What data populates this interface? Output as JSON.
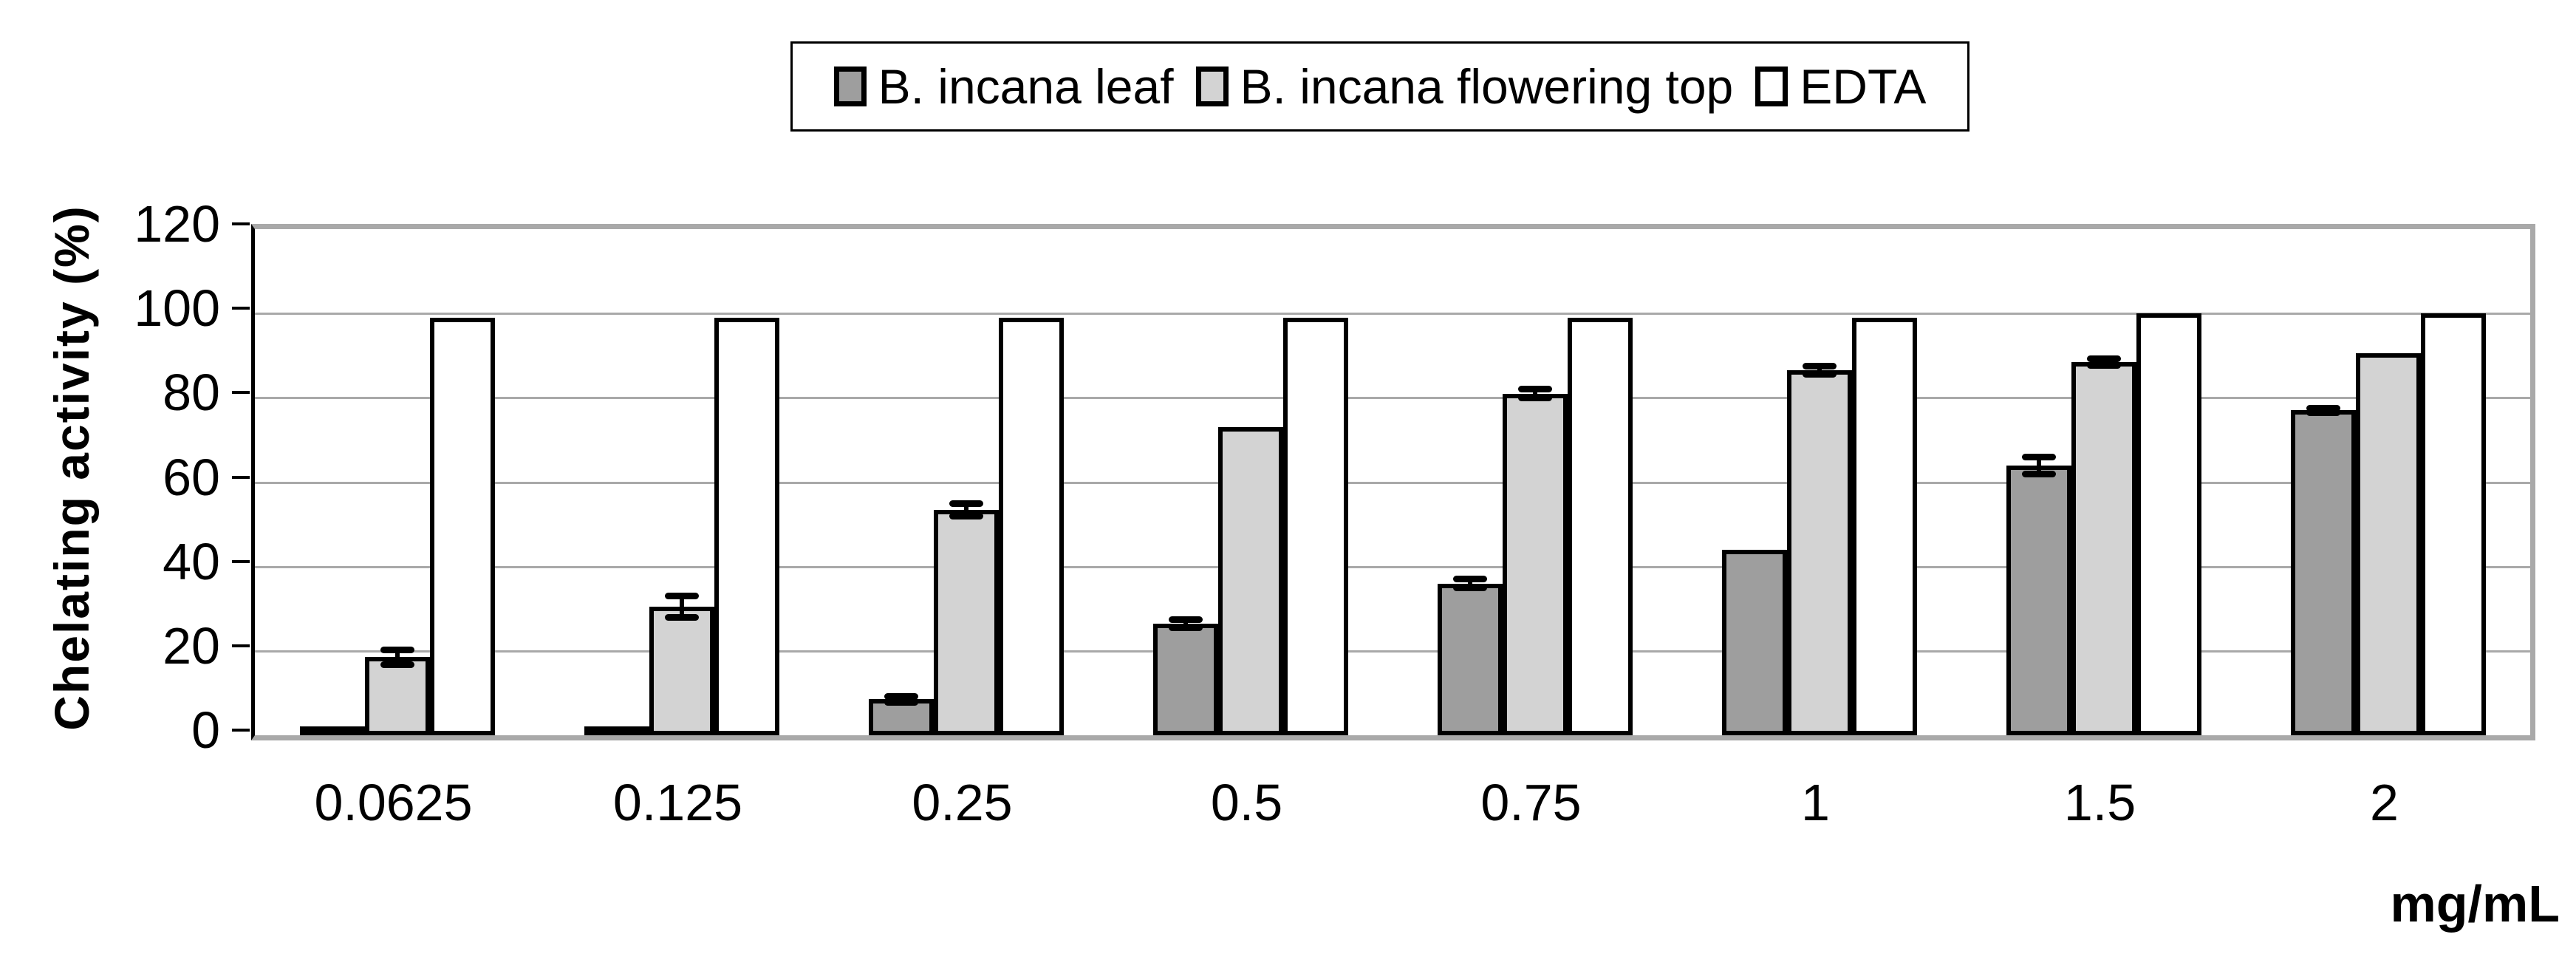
{
  "chart_data": {
    "type": "bar",
    "title": "",
    "categories": [
      "0.0625",
      "0.125",
      "0.25",
      "0.5",
      "0.75",
      "1",
      "1.5",
      "2"
    ],
    "series": [
      {
        "name": "B. incana leaf",
        "color": "#9e9e9e",
        "values": [
          1,
          1,
          8.5,
          26.5,
          36,
          44,
          64,
          77
        ],
        "errors": [
          0,
          0,
          0.7,
          1,
          1,
          0,
          2,
          0.5
        ]
      },
      {
        "name": "B. incana flowering top",
        "color": "#d3d3d3",
        "values": [
          18.5,
          30.5,
          53.5,
          73,
          81,
          86.5,
          88.5,
          90.5
        ],
        "errors": [
          1.8,
          2.5,
          1.5,
          0,
          1,
          1,
          0.8,
          0
        ]
      },
      {
        "name": "EDTA",
        "color": "#ffffff",
        "values": [
          99,
          99,
          99,
          99,
          99,
          99,
          100,
          100
        ],
        "errors": [
          0,
          0,
          0,
          0,
          0,
          0,
          0,
          0
        ]
      }
    ],
    "ylabel": "Chelating activity (%)",
    "xlabel": "mg/mL",
    "ylim": [
      0,
      120
    ],
    "ytick_step": 20,
    "yticks": [
      "0",
      "20",
      "40",
      "60",
      "80",
      "100",
      "120"
    ],
    "grid": "horizontal",
    "legend_position": "top",
    "colors": {
      "bar_border": "#000000",
      "gridline": "#a9a9a9",
      "plot_border": "#a9a9a9",
      "axis_line": "#000000",
      "error_bar": "#000000",
      "background": "#ffffff"
    }
  }
}
